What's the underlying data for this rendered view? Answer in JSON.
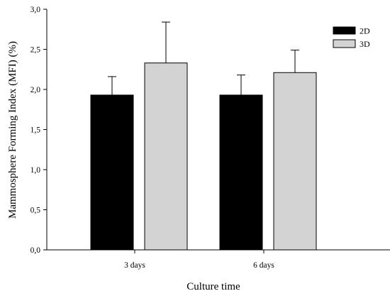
{
  "chart_data": {
    "type": "bar",
    "categories": [
      "3 days",
      "6 days"
    ],
    "series": [
      {
        "name": "2D",
        "values": [
          1.93,
          1.93
        ],
        "errors": [
          0.23,
          0.25
        ],
        "color": "#000000"
      },
      {
        "name": "3D",
        "values": [
          2.33,
          2.21
        ],
        "errors": [
          0.51,
          0.28
        ],
        "color": "#d3d3d3"
      }
    ],
    "xlabel": "Culture time",
    "ylabel": "Mammosphere Forming Index (MFI) (%)",
    "ylim": [
      0,
      3.0
    ],
    "yticks": [
      "0,0",
      "0,5",
      "1,0",
      "1,5",
      "2,0",
      "2,5",
      "3,0"
    ],
    "ytick_values": [
      0,
      0.5,
      1.0,
      1.5,
      2.0,
      2.5,
      3.0
    ],
    "legend_position": "top-right",
    "grid": false
  }
}
